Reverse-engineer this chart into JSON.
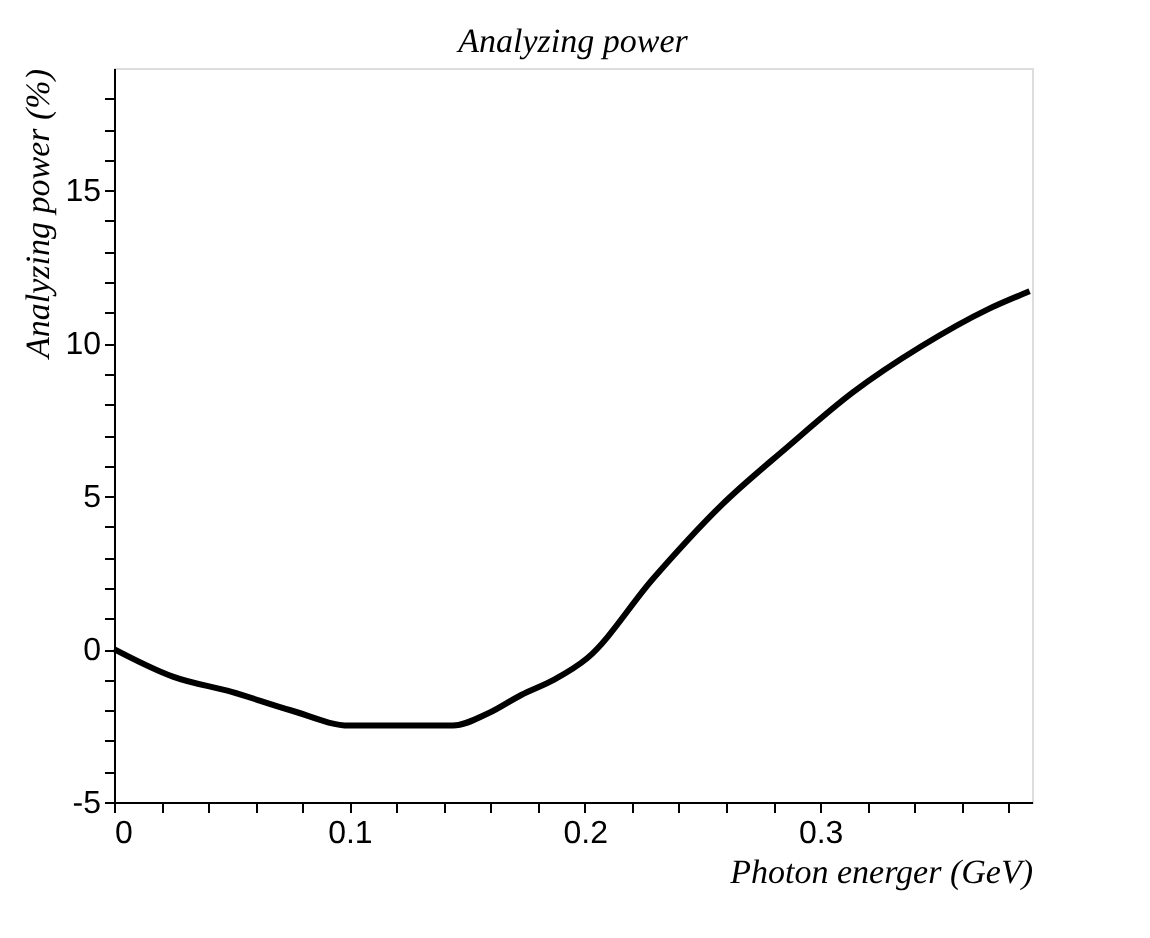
{
  "chart_data": {
    "type": "line",
    "title": "Analyzing power",
    "xlabel": "Photon energer (GeV)",
    "ylabel": "Analyzing power (%)",
    "x": [
      0,
      0.025,
      0.05,
      0.075,
      0.1,
      0.12,
      0.144,
      0.159,
      0.173,
      0.187,
      0.201,
      0.229,
      0.258,
      0.286,
      0.314,
      0.343,
      0.371,
      0.389
    ],
    "series": [
      {
        "color": "#000000",
        "values": [
          0,
          -0.9,
          -1.4,
          -2.0,
          -2.5,
          -2.5,
          -2.5,
          -2.1,
          -1.5,
          -1.0,
          -0.3,
          2.3,
          4.7,
          6.6,
          8.4,
          9.9,
          11.1,
          11.7
        ]
      }
    ],
    "xlim": [
      0,
      0.39
    ],
    "ylim": [
      -5,
      19
    ],
    "xticks": [
      0,
      {
        "value": 0.02,
        "label": null
      },
      {
        "value": 0.04,
        "label": null
      },
      {
        "value": 0.06,
        "label": null
      },
      {
        "value": 0.08,
        "label": null
      },
      0.1,
      {
        "value": 0.12,
        "label": null
      },
      {
        "value": 0.14,
        "label": null
      },
      {
        "value": 0.16,
        "label": null
      },
      {
        "value": 0.18,
        "label": null
      },
      0.2,
      {
        "value": 0.22,
        "label": null
      },
      {
        "value": 0.24,
        "label": null
      },
      {
        "value": 0.26,
        "label": null
      },
      {
        "value": 0.28,
        "label": null
      },
      0.3,
      {
        "value": 0.32,
        "label": null
      },
      {
        "value": 0.34,
        "label": null
      },
      {
        "value": 0.36,
        "label": null
      },
      {
        "value": 0.38,
        "label": null
      }
    ],
    "yticks": [
      -5,
      {
        "value": -4,
        "label": null
      },
      {
        "value": -3,
        "label": null
      },
      {
        "value": -2,
        "label": null
      },
      {
        "value": -1,
        "label": null
      },
      0,
      {
        "value": 1,
        "label": null
      },
      {
        "value": 2,
        "label": null
      },
      {
        "value": 3,
        "label": null
      },
      {
        "value": 4,
        "label": null
      },
      5,
      {
        "value": 6,
        "label": null
      },
      {
        "value": 7,
        "label": null
      },
      {
        "value": 8,
        "label": null
      },
      {
        "value": 9,
        "label": null
      },
      10,
      {
        "value": 11,
        "label": null
      },
      {
        "value": 12,
        "label": null
      },
      {
        "value": 13,
        "label": null
      },
      {
        "value": 14,
        "label": null
      },
      15,
      {
        "value": 16,
        "label": null
      },
      {
        "value": 17,
        "label": null
      },
      {
        "value": 18,
        "label": null
      }
    ],
    "grid": false
  }
}
